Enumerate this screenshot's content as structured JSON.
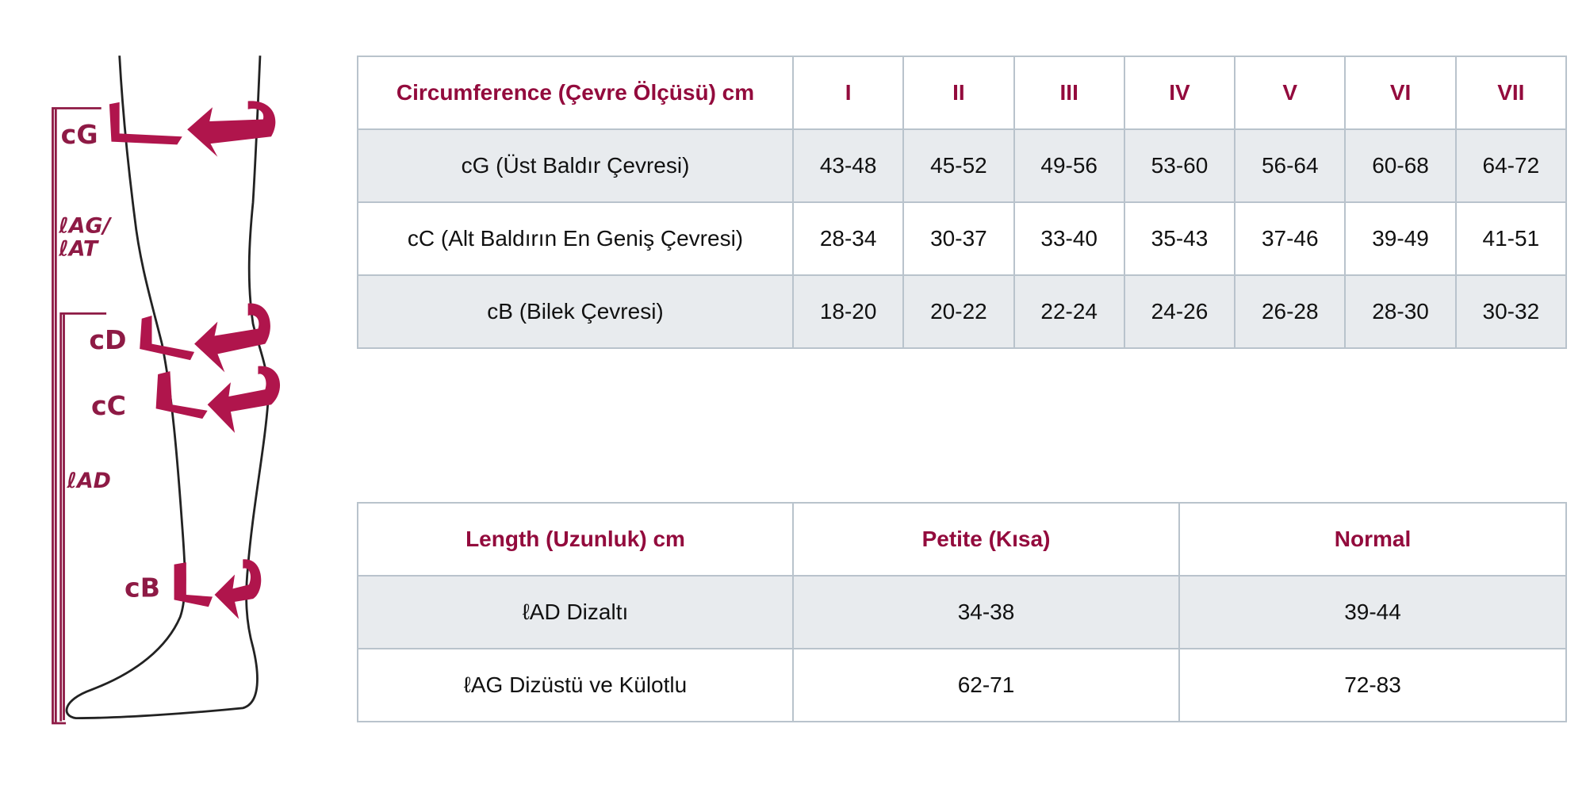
{
  "diagram": {
    "labels": {
      "cG": "cG",
      "lAG": "ℓAG/",
      "lAT": "ℓAT",
      "cD": "cD",
      "cC": "cC",
      "lAD": "ℓAD",
      "cB": "cB"
    },
    "colors": {
      "band": "#b0154c",
      "label": "#8e1a45",
      "outline": "#222222"
    }
  },
  "circumference_table": {
    "header": [
      "Circumference (Çevre Ölçüsü) cm",
      "I",
      "II",
      "III",
      "IV",
      "V",
      "VI",
      "VII"
    ],
    "rows": [
      [
        "cG (Üst Baldır Çevresi)",
        "43-48",
        "45-52",
        "49-56",
        "53-60",
        "56-64",
        "60-68",
        "64-72"
      ],
      [
        "cC (Alt Baldırın En Geniş Çevresi)",
        "28-34",
        "30-37",
        "33-40",
        "35-43",
        "37-46",
        "39-49",
        "41-51"
      ],
      [
        "cB (Bilek Çevresi)",
        "18-20",
        "20-22",
        "22-24",
        "24-26",
        "26-28",
        "28-30",
        "30-32"
      ]
    ]
  },
  "length_table": {
    "header": [
      "Length (Uzunluk) cm",
      "Petite (Kısa)",
      "Normal"
    ],
    "rows": [
      [
        "ℓAD Dizaltı",
        "34-38",
        "39-44"
      ],
      [
        "ℓAG Dizüstü ve Külotlu",
        "62-71",
        "72-83"
      ]
    ]
  },
  "colors": {
    "header_text": "#930b3d",
    "alt_row": "#e8ebee",
    "border": "#b9c3cc"
  }
}
